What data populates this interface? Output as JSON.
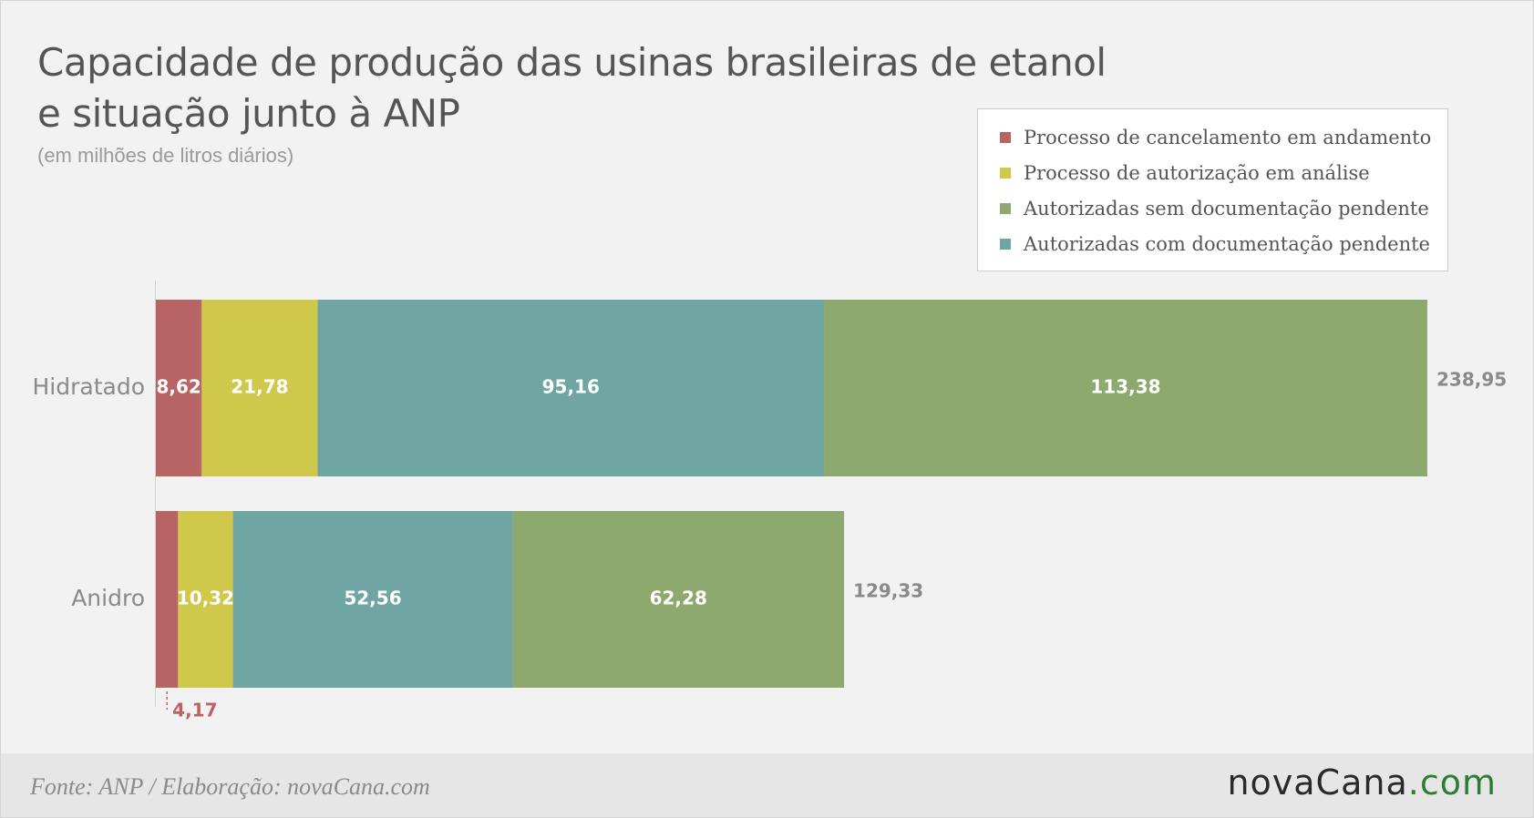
{
  "header": {
    "title_line1": "Capacidade de produção das usinas brasileiras de etanol",
    "title_line2": "e situação junto à ANP",
    "subtitle": "(em milhões de litros diários)"
  },
  "legend": {
    "items": [
      {
        "label": "Processo de cancelamento em andamento",
        "color": "#b86464"
      },
      {
        "label": "Processo de autorização em análise",
        "color": "#cfc84a"
      },
      {
        "label": "Autorizadas sem documentação pendente",
        "color": "#8ea96e"
      },
      {
        "label": "Autorizadas com documentação pendente",
        "color": "#6fa6a3"
      }
    ]
  },
  "footer": {
    "source": "Fonte: ANP / Elaboração: novaCana.com",
    "logo_main": "novaCana",
    "logo_suffix": ".com"
  },
  "chart_data": {
    "type": "bar",
    "orientation": "horizontal",
    "stacked": true,
    "categories": [
      "Hidratado",
      "Anidro"
    ],
    "series": [
      {
        "name": "Processo de cancelamento em andamento",
        "color": "#b86464",
        "values": [
          8.62,
          4.17
        ],
        "labels": [
          "8,62",
          "4,17"
        ]
      },
      {
        "name": "Processo de autorização em análise",
        "color": "#cfc84a",
        "values": [
          21.78,
          10.32
        ],
        "labels": [
          "21,78",
          "10,32"
        ]
      },
      {
        "name": "Autorizadas com documentação pendente",
        "color": "#6fa6a3",
        "values": [
          95.16,
          52.56
        ],
        "labels": [
          "95,16",
          "52,56"
        ]
      },
      {
        "name": "Autorizadas sem documentação pendente",
        "color": "#8ea96e",
        "values": [
          113.38,
          62.28
        ],
        "labels": [
          "113,38",
          "62,28"
        ]
      }
    ],
    "totals": [
      238.95,
      129.33
    ],
    "total_labels": [
      "238,95",
      "129,33"
    ],
    "xlim": [
      0,
      238.95
    ],
    "grid": false,
    "legend_position": "top-right"
  }
}
